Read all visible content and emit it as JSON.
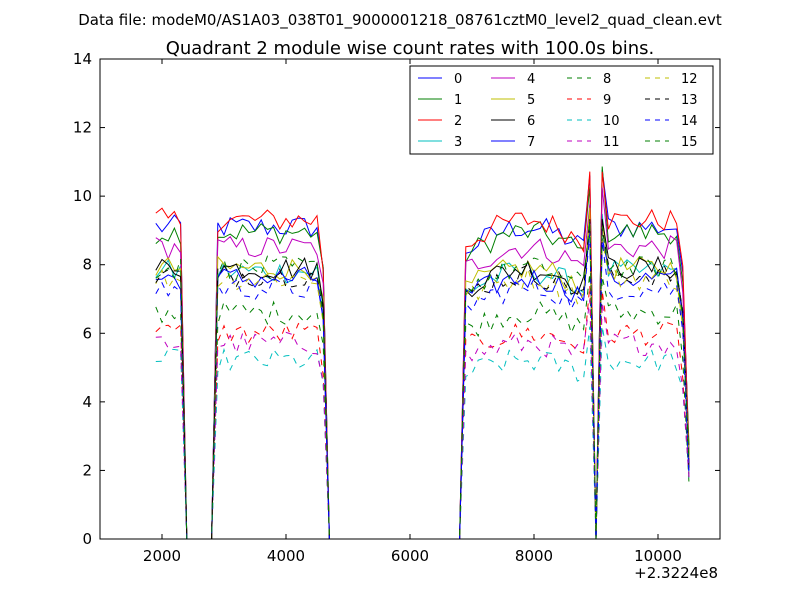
{
  "header": {
    "data_file": "Data file: modeM0/AS1A03_038T01_9000001218_08761cztM0_level2_quad_clean.evt"
  },
  "chart_data": {
    "type": "line",
    "title": "Quadrant 2 module wise count rates with 100.0s bins.",
    "xlabel": "",
    "ylabel": "",
    "x_offset_label": "+2.3224e8",
    "xlim": [
      1000,
      11000
    ],
    "ylim": [
      0,
      14
    ],
    "x_ticks": [
      2000,
      4000,
      6000,
      8000,
      10000
    ],
    "y_ticks": [
      0,
      2,
      4,
      6,
      8,
      10,
      12,
      14
    ],
    "grid": false,
    "legend_position": "top-right",
    "series": [
      {
        "name": "0",
        "color": "#0000ff",
        "dash": "solid",
        "level": 9.1
      },
      {
        "name": "1",
        "color": "#007f00",
        "dash": "solid",
        "level": 8.95
      },
      {
        "name": "2",
        "color": "#ff0000",
        "dash": "solid",
        "level": 9.3
      },
      {
        "name": "3",
        "color": "#00bfbf",
        "dash": "solid",
        "level": 7.8
      },
      {
        "name": "4",
        "color": "#bf00bf",
        "dash": "solid",
        "level": 8.5
      },
      {
        "name": "5",
        "color": "#bfbf00",
        "dash": "solid",
        "level": 7.9
      },
      {
        "name": "6",
        "color": "#000000",
        "dash": "solid",
        "level": 7.9
      },
      {
        "name": "7",
        "color": "#0000ff",
        "dash": "solid",
        "level": 7.6
      },
      {
        "name": "8",
        "color": "#007f00",
        "dash": "dashed",
        "level": 6.6
      },
      {
        "name": "9",
        "color": "#ff0000",
        "dash": "dashed",
        "level": 6.0
      },
      {
        "name": "10",
        "color": "#00bfbf",
        "dash": "dashed",
        "level": 5.2
      },
      {
        "name": "11",
        "color": "#bf00bf",
        "dash": "dashed",
        "level": 5.7
      },
      {
        "name": "12",
        "color": "#bfbf00",
        "dash": "dashed",
        "level": 7.6
      },
      {
        "name": "13",
        "color": "#000000",
        "dash": "dashed",
        "level": 7.7
      },
      {
        "name": "14",
        "color": "#0000ff",
        "dash": "dashed",
        "level": 7.3
      },
      {
        "name": "15",
        "color": "#007f00",
        "dash": "dashed",
        "level": 7.9
      }
    ],
    "time_segments": [
      {
        "start": 1900,
        "end": 2300,
        "mult": 1.0
      },
      {
        "start": 2850,
        "end": 4600,
        "mult": 1.0
      },
      {
        "start": 6850,
        "end": 8900,
        "mult": 1.0
      },
      {
        "start": 9100,
        "end": 10500,
        "mult": 1.0
      }
    ],
    "gaps": [
      {
        "start": 2400,
        "end": 2700
      },
      {
        "start": 4700,
        "end": 6800
      },
      {
        "start": 8950,
        "end": 9000
      }
    ]
  }
}
